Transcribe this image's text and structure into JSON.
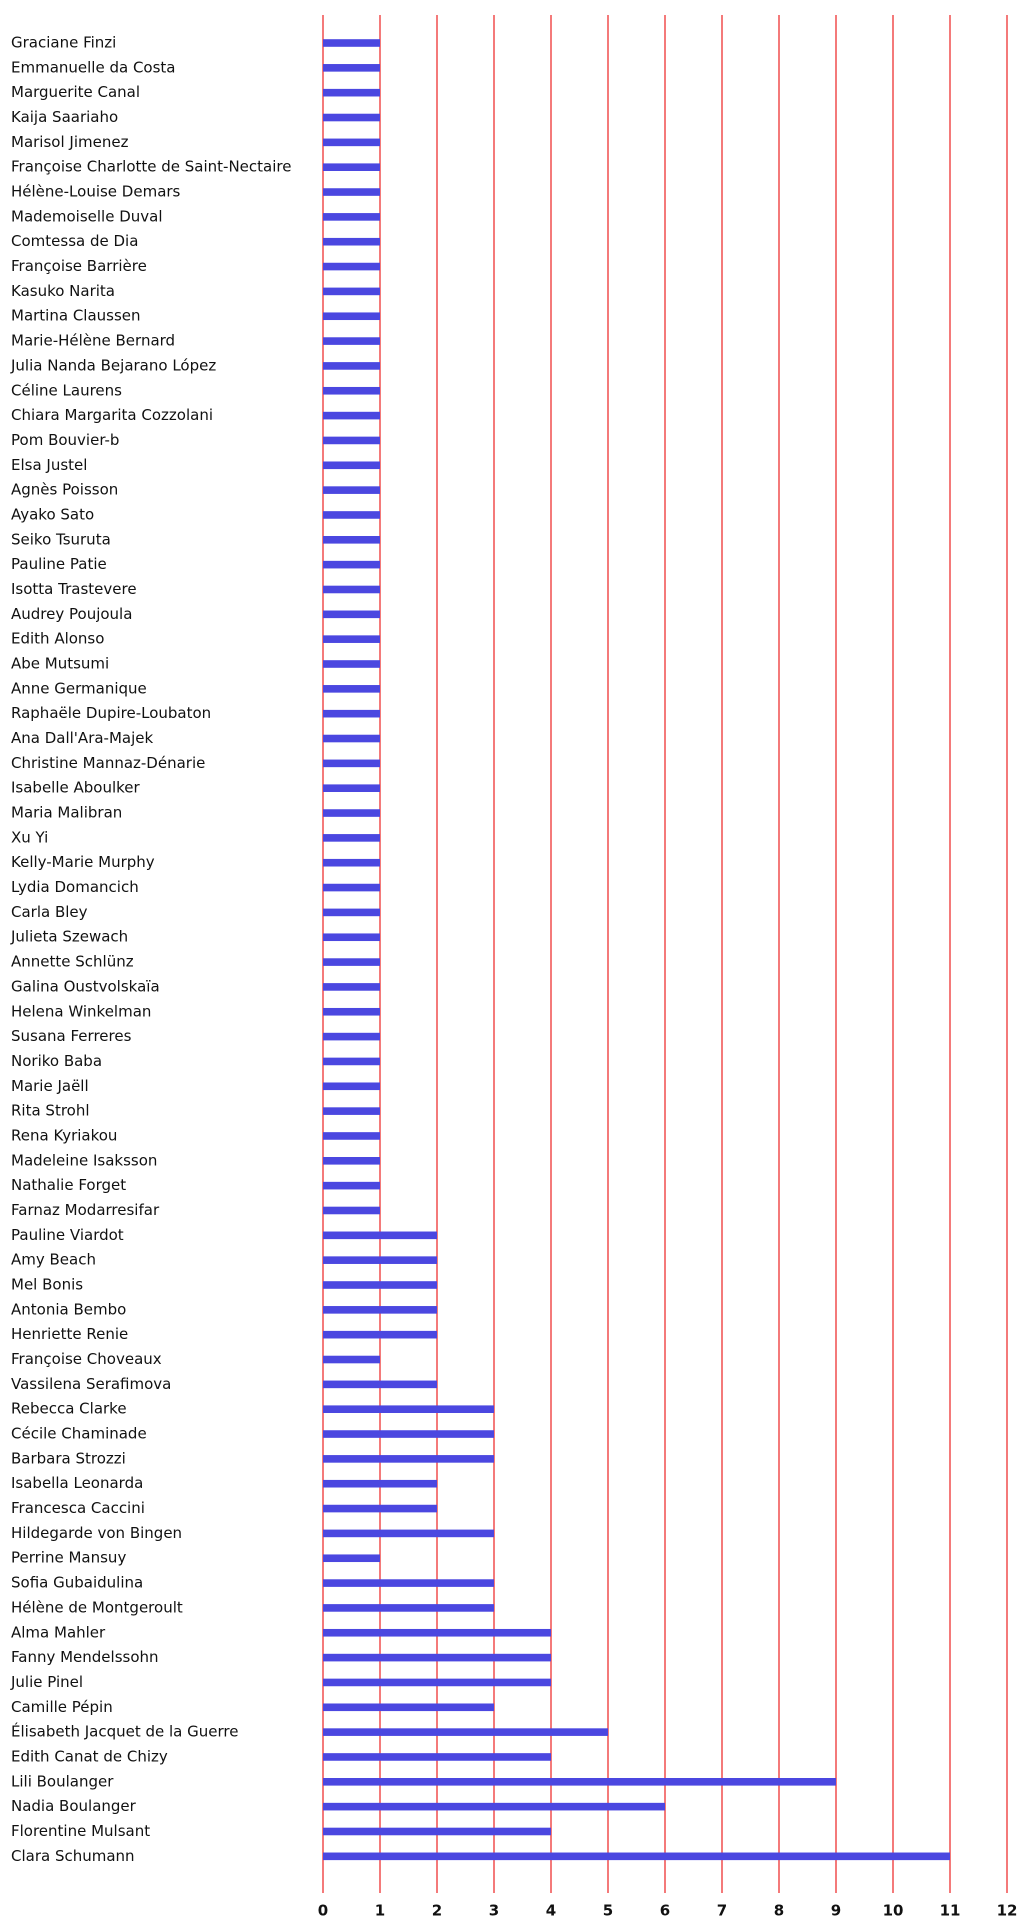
{
  "chart_data": {
    "type": "bar",
    "orientation": "horizontal",
    "color": "#4b47e0",
    "grid_color": "#ee3333",
    "grid": true,
    "xlim": [
      0,
      12
    ],
    "xticks": [
      0,
      1,
      2,
      3,
      4,
      5,
      6,
      7,
      8,
      9,
      10,
      11,
      12
    ],
    "categories": [
      "Graciane Finzi",
      "Emmanuelle da Costa",
      "Marguerite Canal",
      "Kaija Saariaho",
      "Marisol Jimenez",
      "Françoise Charlotte de Saint-Nectaire",
      "Hélène-Louise Demars",
      "Mademoiselle Duval",
      "Comtessa de Dia",
      "Françoise Barrière",
      "Kasuko Narita",
      "Martina Claussen",
      "Marie-Hélène Bernard",
      "Julia Nanda Bejarano López",
      "Céline Laurens",
      "Chiara Margarita Cozzolani",
      "Pom Bouvier-b",
      "Elsa Justel",
      "Agnès Poisson",
      "Ayako Sato",
      "Seiko Tsuruta",
      "Pauline Patie",
      "Isotta Trastevere",
      "Audrey Poujoula",
      "Edith Alonso",
      "Abe Mutsumi",
      "Anne Germanique",
      "Raphaële Dupire-Loubaton",
      "Ana Dall'Ara-Majek",
      "Christine Mannaz-Dénarie",
      "Isabelle Aboulker",
      "Maria Malibran",
      "Xu Yi",
      "Kelly-Marie Murphy",
      "Lydia Domancich",
      "Carla Bley",
      "Julieta Szewach",
      "Annette Schlünz",
      "Galina Oustvolskaïa",
      "Helena Winkelman",
      "Susana Ferreres",
      "Noriko Baba",
      "Marie Jaëll",
      "Rita Strohl",
      "Rena Kyriakou",
      "Madeleine Isaksson",
      "Nathalie Forget",
      "Farnaz Modarresifar",
      "Pauline Viardot",
      "Amy Beach",
      "Mel Bonis",
      "Antonia Bembo",
      "Henriette Renie",
      "Françoise Choveaux",
      "Vassilena Serafimova",
      "Rebecca Clarke",
      "Cécile Chaminade",
      "Barbara Strozzi",
      "Isabella Leonarda",
      "Francesca Caccini",
      "Hildegarde von Bingen",
      "Perrine Mansuy",
      "Sofia Gubaidulina",
      "Hélène de Montgeroult",
      "Alma Mahler",
      "Fanny Mendelssohn",
      "Julie Pinel",
      "Camille Pépin",
      "Élisabeth Jacquet de la Guerre",
      "Edith Canat de Chizy",
      "Lili Boulanger",
      "Nadia Boulanger",
      "Florentine Mulsant",
      "Clara Schumann"
    ],
    "values": [
      1,
      1,
      1,
      1,
      1,
      1,
      1,
      1,
      1,
      1,
      1,
      1,
      1,
      1,
      1,
      1,
      1,
      1,
      1,
      1,
      1,
      1,
      1,
      1,
      1,
      1,
      1,
      1,
      1,
      1,
      1,
      1,
      1,
      1,
      1,
      1,
      1,
      1,
      1,
      1,
      1,
      1,
      1,
      1,
      1,
      1,
      1,
      1,
      2,
      2,
      2,
      2,
      2,
      1,
      2,
      3,
      3,
      3,
      2,
      2,
      3,
      1,
      3,
      3,
      4,
      4,
      4,
      3,
      5,
      4,
      9,
      6,
      4,
      11
    ]
  }
}
